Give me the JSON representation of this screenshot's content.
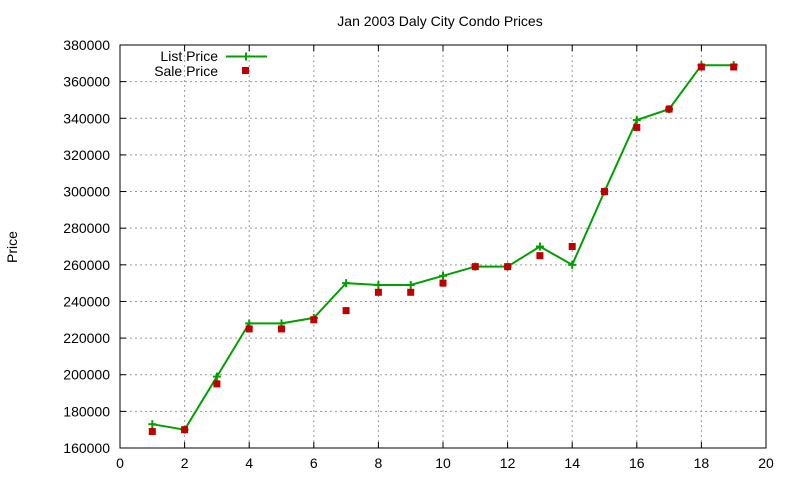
{
  "chart_data": {
    "type": "line",
    "title": "Jan 2003 Daly City Condo Prices",
    "xlabel": "",
    "ylabel": "Price",
    "xlim": [
      0,
      20
    ],
    "ylim": [
      160000,
      380000
    ],
    "x_ticks": [
      0,
      2,
      4,
      6,
      8,
      10,
      12,
      14,
      16,
      18,
      20
    ],
    "y_ticks": [
      160000,
      180000,
      200000,
      220000,
      240000,
      260000,
      280000,
      300000,
      320000,
      340000,
      360000,
      380000
    ],
    "grid": true,
    "legend_position": "top-left",
    "series": [
      {
        "name": "List Price",
        "style": "line-plus",
        "color": "#00a000",
        "x": [
          1,
          2,
          3,
          4,
          5,
          6,
          7,
          8,
          9,
          10,
          11,
          12,
          13,
          14,
          15,
          16,
          17,
          18,
          19
        ],
        "y": [
          173000,
          170000,
          199000,
          228000,
          228000,
          231000,
          250000,
          249000,
          249000,
          254000,
          259000,
          259000,
          270000,
          260000,
          300000,
          339000,
          345000,
          369000,
          369000
        ]
      },
      {
        "name": "Sale Price",
        "style": "square-points",
        "color": "#c00000",
        "x": [
          1,
          2,
          3,
          4,
          5,
          6,
          7,
          8,
          9,
          10,
          11,
          12,
          13,
          14,
          15,
          16,
          17,
          18,
          19
        ],
        "y": [
          169000,
          170000,
          195000,
          225000,
          225000,
          230000,
          235000,
          245000,
          245000,
          250000,
          259000,
          259000,
          265000,
          270000,
          300000,
          335000,
          345000,
          368000,
          368000
        ]
      }
    ]
  }
}
